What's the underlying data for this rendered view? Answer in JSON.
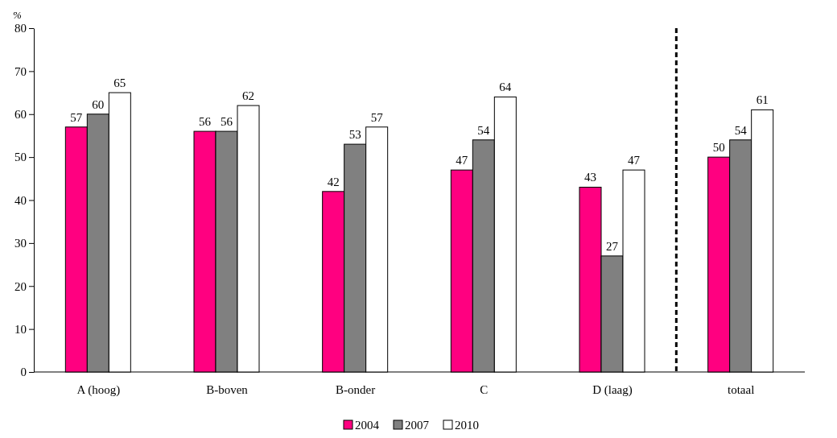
{
  "chart_data": {
    "type": "bar",
    "ylabel": "%",
    "categories": [
      "A (hoog)",
      "B-boven",
      "B-onder",
      "C",
      "D (laag)",
      "totaal"
    ],
    "series": [
      {
        "name": "2004",
        "color": "#ff0080",
        "values": [
          57,
          56,
          42,
          47,
          43,
          50
        ]
      },
      {
        "name": "2007",
        "color": "#808080",
        "values": [
          60,
          56,
          53,
          54,
          27,
          54
        ]
      },
      {
        "name": "2010",
        "color": "#ffffff",
        "values": [
          65,
          62,
          57,
          64,
          47,
          61
        ]
      }
    ],
    "ylim": [
      0,
      80
    ],
    "yticks": [
      0,
      10,
      20,
      30,
      40,
      50,
      60,
      70,
      80
    ],
    "data_labels": true,
    "legend": "bottom"
  }
}
